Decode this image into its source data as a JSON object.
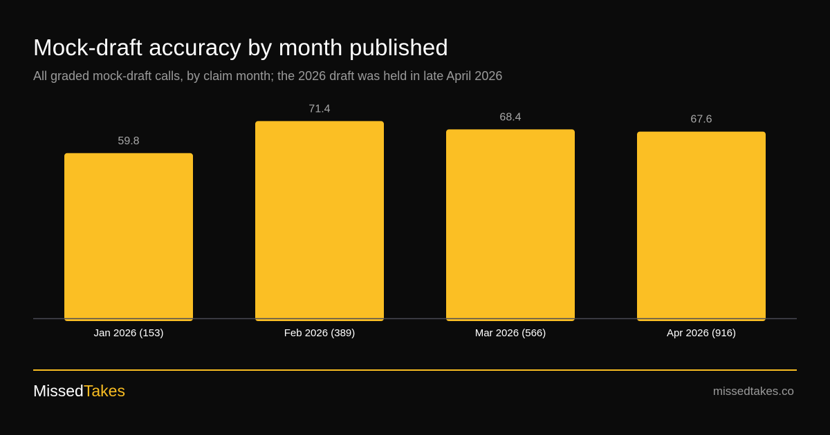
{
  "header": {
    "title": "Mock-draft accuracy by month published",
    "subtitle": "All graded mock-draft calls, by claim month; the 2026 draft was held in late April 2026"
  },
  "chart_data": {
    "type": "bar",
    "categories": [
      "Jan 2026 (153)",
      "Feb 2026 (389)",
      "Mar 2026 (566)",
      "Apr 2026 (916)"
    ],
    "values": [
      59.8,
      71.4,
      68.4,
      67.6
    ],
    "value_labels": [
      "59.8",
      "71.4",
      "68.4",
      "67.6"
    ],
    "title": "Mock-draft accuracy by month published",
    "xlabel": "",
    "ylabel": "",
    "ylim": [
      0,
      100
    ],
    "grid": false,
    "legend": "none",
    "colors": {
      "bar": "#fbbf24",
      "baseline": "#4a4a55",
      "value_label": "#a8a8a8",
      "tick_label": "#ffffff"
    }
  },
  "footer": {
    "brand_primary": "Missed",
    "brand_accent": "Takes",
    "site": "missedtakes.co",
    "accent_color": "#f9bd22"
  }
}
